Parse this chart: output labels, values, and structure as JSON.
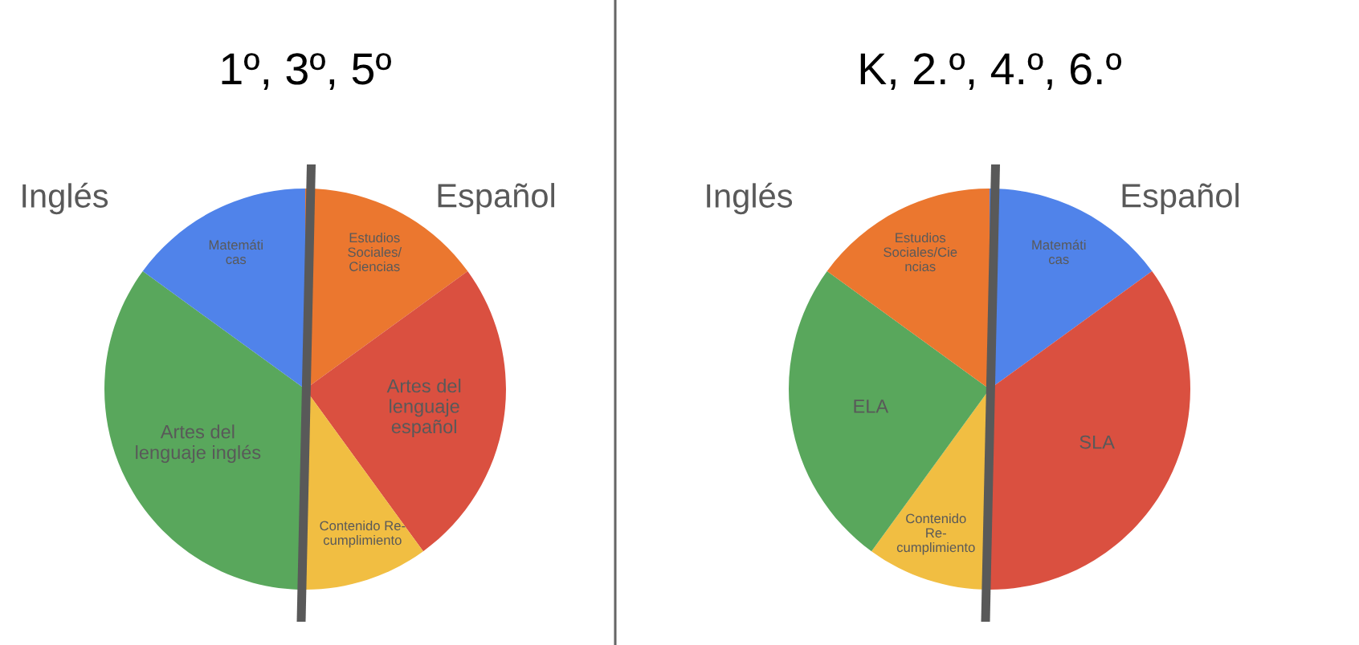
{
  "chart_data": [
    {
      "type": "pie",
      "title": "1º, 3º, 5º",
      "categories": [
        "Estudios\nSociales/\nCiencias",
        "Artes del\nlenguaje\nespañol",
        "Contenido Re-\ncumplimiento",
        "Artes del\nlenguaje inglés",
        "Matemáti\ncas"
      ],
      "values": [
        15,
        25,
        10,
        35,
        15
      ],
      "colors": [
        "#eb772f",
        "#da5040",
        "#f1be42",
        "#59a75c",
        "#5083ea"
      ],
      "annotations": [
        "Inglés",
        "Español"
      ]
    },
    {
      "type": "pie",
      "title": "K, 2.º, 4.º, 6.º",
      "categories": [
        "Matemáti\ncas",
        "SLA",
        "Contenido\nRe-\ncumplimiento",
        "ELA",
        "Estudios\nSociales/Cie\nncias"
      ],
      "values": [
        15,
        35,
        10,
        25,
        15
      ],
      "colors": [
        "#5083ea",
        "#da5040",
        "#f1be42",
        "#59a75c",
        "#eb772f"
      ],
      "annotations": [
        "Inglés",
        "Español"
      ]
    }
  ]
}
